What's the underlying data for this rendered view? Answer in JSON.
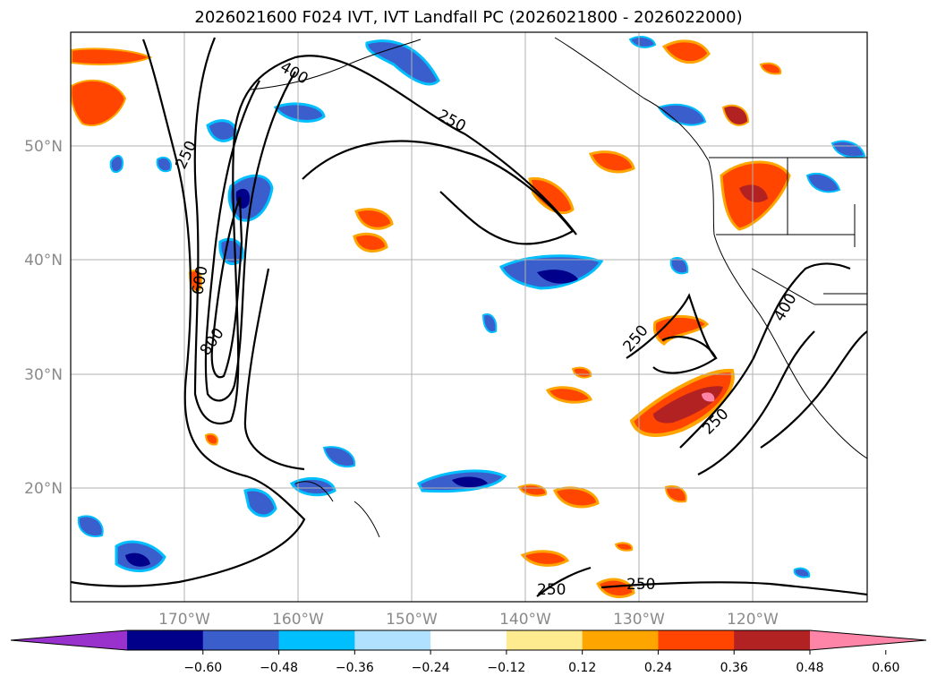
{
  "title": "2026021600 F024 IVT, IVT Landfall PC (2026021800 - 2026022000)",
  "latitude_labels": [
    "50°N",
    "40°N",
    "30°N",
    "20°N"
  ],
  "longitude_labels": [
    "170°W",
    "160°W",
    "150°W",
    "140°W",
    "130°W",
    "120°W"
  ],
  "ivt_contours": {
    "color": "#000000",
    "labels": [
      "400",
      "250",
      "250",
      "600",
      "800",
      "250",
      "250",
      "400",
      "250",
      "250"
    ]
  },
  "colorbar": {
    "colors": [
      "#9932cc",
      "#00008b",
      "#3a5fcd",
      "#00bfff",
      "#b0e2ff",
      "#ffffff",
      "#ffeb8f",
      "#ffa500",
      "#ff4500",
      "#b22222",
      "#ff85a8"
    ],
    "tick_labels": [
      "−0.60",
      "−0.48",
      "−0.36",
      "−0.24",
      "−0.12",
      "0.12",
      "0.24",
      "0.36",
      "0.48",
      "0.60"
    ]
  },
  "layers": {
    "shading": "IVT Landfall PC",
    "contours": "IVT",
    "coastlines": true,
    "state_borders": true,
    "gridlines": true
  }
}
